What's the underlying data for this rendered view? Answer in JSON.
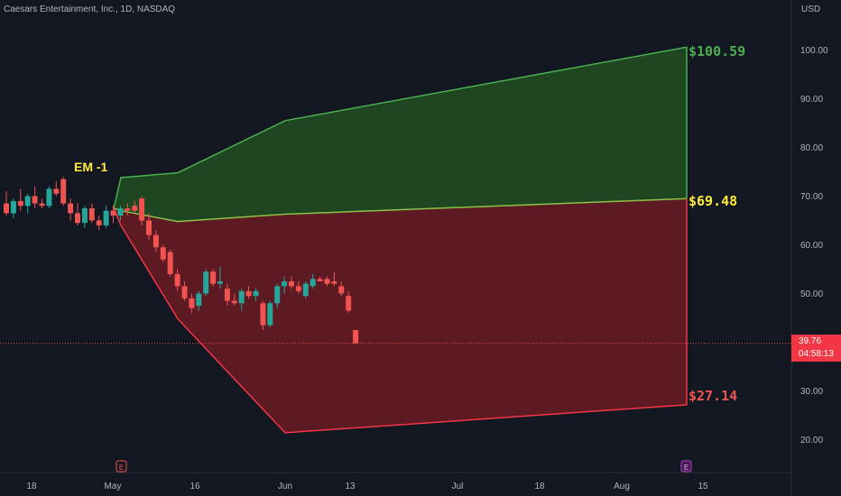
{
  "header": {
    "title": "Caesars Entertainment, Inc., 1D, NASDAQ",
    "currency": "USD"
  },
  "last_price": {
    "value": "39.76",
    "countdown": "04:58:13"
  },
  "colors": {
    "background": "#131722",
    "up_candle": "#26a69a",
    "down_candle": "#f05350",
    "upper_band": "#4caf50",
    "upper_fill": "#1e4620",
    "lower_band": "#f23645",
    "lower_fill": "#5e1a22",
    "mid_line": "#8bc34a",
    "em_label": "#ffeb3b",
    "axis_text": "#b2b5be"
  },
  "chart_data": {
    "type": "candlestick",
    "y_axis": {
      "range": [
        14,
        108
      ],
      "ticks": [
        20,
        30,
        40,
        50,
        60,
        70,
        80,
        90,
        100
      ],
      "tick_labels": [
        "20.00",
        "30.00",
        "40.00",
        "50.00",
        "60.00",
        "70.00",
        "80.00",
        "90.00",
        "100.00"
      ]
    },
    "x_axis": {
      "tick_labels": [
        "18",
        "May",
        "16",
        "Jun",
        "13",
        "Jul",
        "18",
        "Aug",
        "15"
      ]
    },
    "ohlc": [
      [
        68.5,
        71.0,
        66.0,
        66.5
      ],
      [
        66.5,
        69.5,
        65.5,
        69.0
      ],
      [
        69.0,
        71.5,
        67.0,
        68.0
      ],
      [
        68.0,
        70.5,
        66.5,
        70.0
      ],
      [
        70.0,
        72.0,
        67.5,
        68.5
      ],
      [
        68.5,
        69.5,
        67.5,
        68.0
      ],
      [
        68.0,
        72.0,
        67.5,
        71.5
      ],
      [
        71.5,
        73.0,
        70.0,
        70.5
      ],
      [
        73.5,
        74.0,
        68.0,
        68.5
      ],
      [
        68.5,
        69.5,
        65.0,
        66.5
      ],
      [
        66.5,
        68.5,
        64.0,
        64.5
      ],
      [
        64.5,
        68.0,
        63.5,
        67.5
      ],
      [
        67.5,
        68.5,
        64.5,
        65.0
      ],
      [
        65.0,
        66.0,
        63.0,
        64.0
      ],
      [
        64.0,
        68.0,
        63.5,
        67.0
      ],
      [
        67.0,
        68.0,
        64.5,
        66.0
      ],
      [
        66.0,
        68.0,
        65.0,
        67.5
      ],
      [
        67.5,
        68.5,
        66.0,
        67.0
      ],
      [
        68.0,
        69.0,
        66.5,
        67.0
      ],
      [
        69.5,
        70.0,
        64.0,
        65.0
      ],
      [
        65.0,
        66.5,
        61.0,
        62.0
      ],
      [
        62.0,
        63.0,
        58.5,
        59.5
      ],
      [
        59.5,
        60.0,
        56.5,
        57.0
      ],
      [
        58.5,
        59.0,
        53.5,
        54.0
      ],
      [
        54.0,
        55.0,
        50.5,
        51.5
      ],
      [
        51.5,
        52.5,
        48.5,
        49.0
      ],
      [
        49.0,
        50.0,
        46.0,
        47.0
      ],
      [
        47.5,
        50.5,
        46.5,
        50.0
      ],
      [
        50.0,
        55.0,
        49.5,
        54.5
      ],
      [
        54.5,
        55.0,
        51.5,
        52.0
      ],
      [
        52.0,
        55.5,
        51.0,
        52.5
      ],
      [
        51.0,
        52.0,
        47.5,
        48.5
      ],
      [
        48.5,
        50.0,
        47.5,
        48.0
      ],
      [
        48.0,
        51.0,
        46.5,
        50.5
      ],
      [
        50.5,
        51.5,
        49.0,
        49.5
      ],
      [
        49.5,
        51.0,
        48.5,
        50.5
      ],
      [
        48.0,
        48.5,
        42.5,
        43.5
      ],
      [
        43.5,
        48.5,
        43.0,
        48.0
      ],
      [
        48.0,
        52.0,
        47.0,
        51.5
      ],
      [
        51.5,
        53.5,
        50.0,
        52.5
      ],
      [
        52.5,
        53.5,
        51.0,
        51.5
      ],
      [
        51.5,
        52.5,
        50.0,
        50.5
      ],
      [
        49.5,
        52.5,
        49.0,
        52.0
      ],
      [
        51.5,
        54.0,
        51.0,
        53.0
      ],
      [
        53.0,
        53.5,
        52.5,
        52.5
      ],
      [
        53.0,
        53.5,
        51.5,
        52.0
      ],
      [
        52.5,
        54.5,
        51.5,
        52.0
      ],
      [
        51.5,
        52.5,
        49.5,
        50.0
      ],
      [
        49.5,
        50.5,
        46.0,
        46.5
      ],
      [
        42.5,
        42.5,
        39.7,
        39.76
      ]
    ],
    "expected_move": {
      "label": "EM -1",
      "upper": [
        67.5,
        73.8,
        74.8,
        85.5,
        100.59
      ],
      "mid": [
        67.5,
        67.0,
        64.8,
        66.3,
        69.48
      ],
      "lower": [
        67.5,
        64.0,
        44.8,
        21.4,
        27.14
      ],
      "end_labels": [
        "$100.59",
        "$69.48",
        "$27.14"
      ]
    },
    "last_price_line": 39.76,
    "earnings_markers": [
      "E",
      "E"
    ]
  }
}
